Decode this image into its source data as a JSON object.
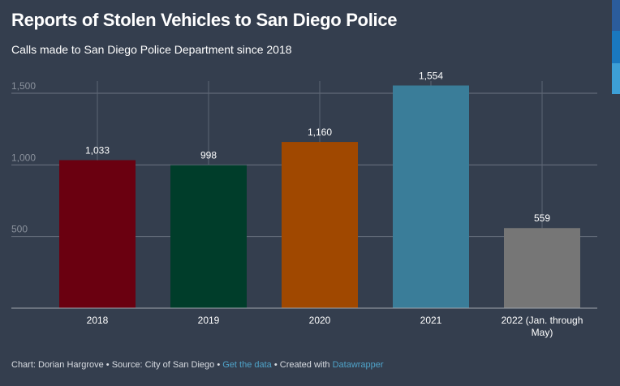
{
  "title": "Reports of Stolen Vehicles to San Diego Police",
  "subtitle": "Calls made to San Diego Police Department since 2018",
  "chart_data": {
    "type": "bar",
    "categories": [
      "2018",
      "2019",
      "2020",
      "2021",
      "2022 (Jan. through May)"
    ],
    "values": [
      1033,
      998,
      1160,
      1554,
      559
    ],
    "value_labels": [
      "1,033",
      "998",
      "1,160",
      "1,554",
      "559"
    ],
    "colors": [
      "#6a0010",
      "#003d2a",
      "#a04800",
      "#3a7d99",
      "#767676"
    ],
    "yticks": [
      500,
      1000,
      1500
    ],
    "ytick_labels": [
      "500",
      "1,000",
      "1,500"
    ],
    "ylim": [
      0,
      1600
    ],
    "grid": true
  },
  "footer": {
    "chart_by": "Chart: Dorian Hargrove",
    "source": "Source: City of San Diego",
    "get_data": "Get the data",
    "created_with": "Created with",
    "datawrapper": "Datawrapper",
    "separator": " • "
  },
  "side_strip_colors": [
    "#2b5c9c",
    "#1a78bf",
    "#3d9fd6"
  ]
}
